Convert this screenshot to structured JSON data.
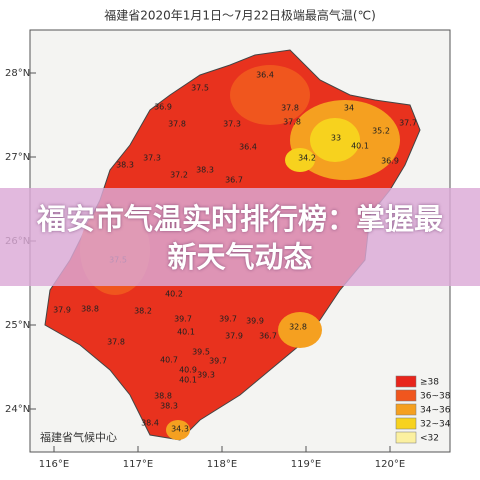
{
  "map": {
    "title": "福建省2020年1月1日～7月22日极端最高气温(℃)",
    "lat_labels": [
      "28°N",
      "27°N",
      "26°N",
      "25°N",
      "24°N"
    ],
    "lon_labels": [
      "116°E",
      "117°E",
      "118°E",
      "119°E",
      "120°E"
    ],
    "legend": [
      {
        "label": "≥38",
        "color": "#e8251c"
      },
      {
        "label": "36~38",
        "color": "#f0561e"
      },
      {
        "label": "34~36",
        "color": "#f5a020"
      },
      {
        "label": "32~34",
        "color": "#f7d21e"
      },
      {
        "label": "<32",
        "color": "#fbf0a0"
      }
    ],
    "stations": [
      36.4,
      37.5,
      36.9,
      37.8,
      37.3,
      37.8,
      37.8,
      34,
      36.4,
      33,
      35.2,
      37.7,
      38.3,
      37.3,
      38.3,
      34.2,
      40.1,
      36.9,
      37.2,
      36.7,
      37.5,
      38.8,
      37.9,
      38.2,
      40.2,
      39.7,
      39.7,
      39.9,
      37.8,
      40.1,
      32.8,
      37.9,
      36.7,
      39.5,
      40.7,
      39.7,
      40.9,
      40.1,
      39.3,
      38.8,
      38.3,
      38.4,
      34.3
    ],
    "source": "福建省气候中心"
  },
  "overlay": {
    "title": "福安市气温实时排行榜：掌握最新天气动态"
  }
}
